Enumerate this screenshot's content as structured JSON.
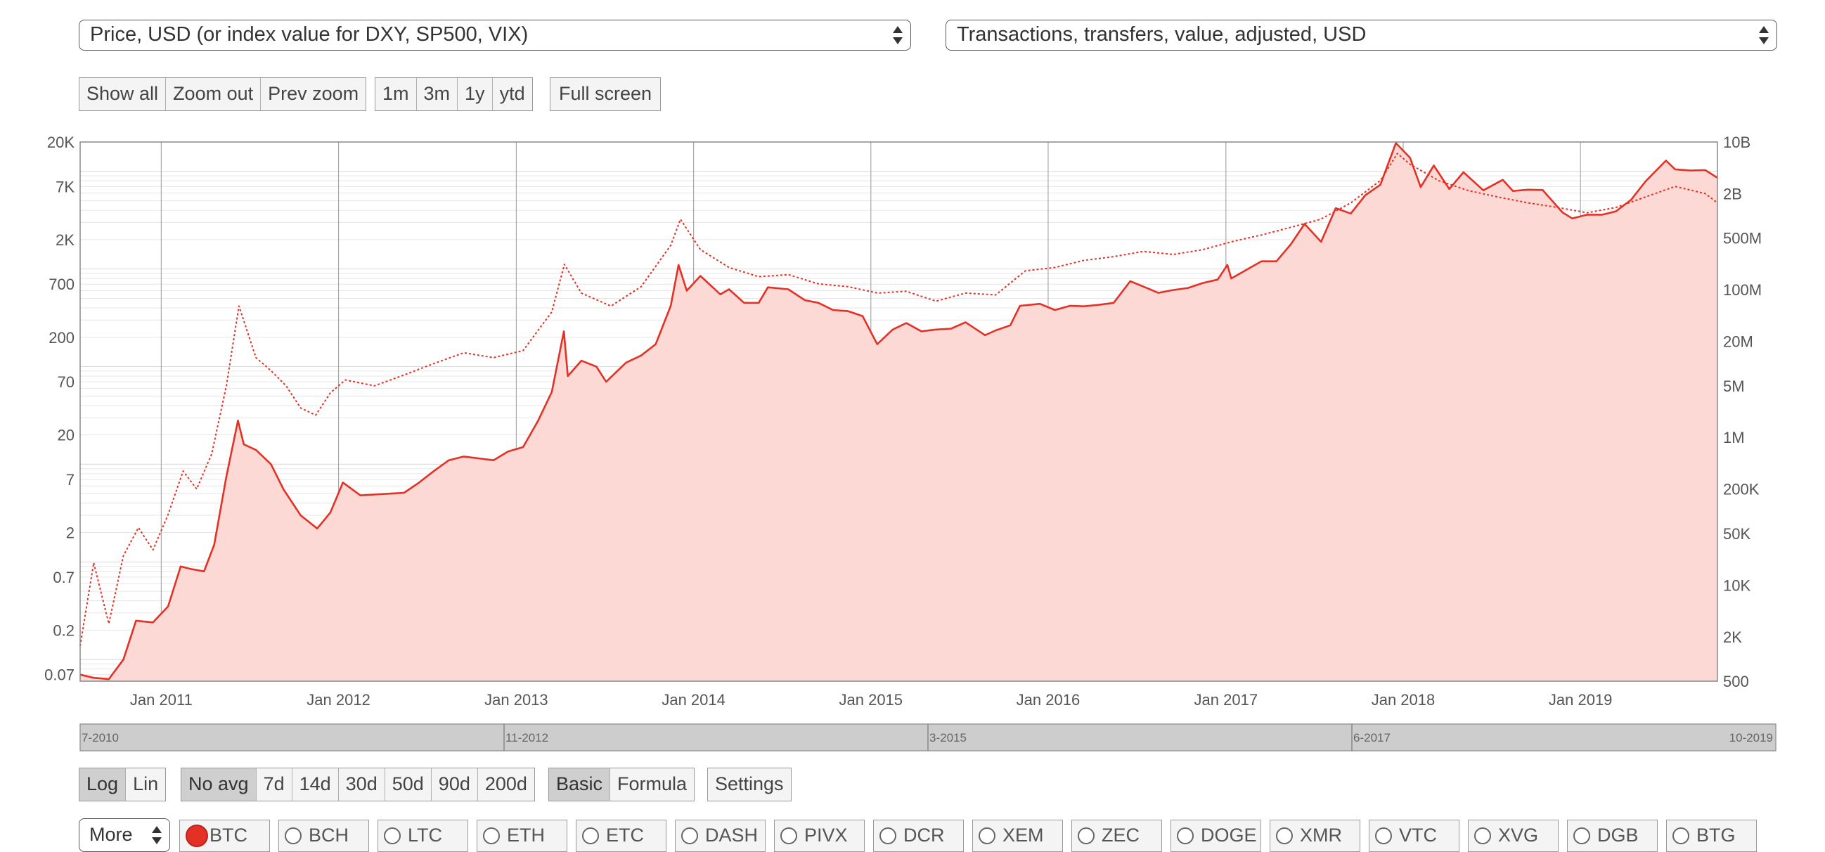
{
  "selectors": {
    "left_metric": "Price, USD (or index value for DXY, SP500, VIX)",
    "right_metric": "Transactions, transfers, value, adjusted, USD"
  },
  "zoom_buttons": [
    "Show all",
    "Zoom out",
    "Prev zoom"
  ],
  "range_buttons": [
    "1m",
    "3m",
    "1y",
    "ytd"
  ],
  "fullscreen_label": "Full screen",
  "scale_buttons": [
    "Log",
    "Lin"
  ],
  "scale_active": "Log",
  "avg_buttons": [
    "No avg",
    "7d",
    "14d",
    "30d",
    "50d",
    "90d",
    "200d"
  ],
  "avg_active": "No avg",
  "mode_buttons": [
    "Basic",
    "Formula"
  ],
  "mode_active": "Basic",
  "settings_label": "Settings",
  "more_label": "More",
  "coins": [
    "BTC",
    "BCH",
    "LTC",
    "ETH",
    "ETC",
    "DASH",
    "PIVX",
    "DCR",
    "XEM",
    "ZEC",
    "DOGE",
    "XMR",
    "VTC",
    "XVG",
    "DGB",
    "BTG"
  ],
  "active_coin": "BTC",
  "navigator_labels": [
    "7-2010",
    "11-2012",
    "3-2015",
    "6-2017",
    "10-2019"
  ],
  "colors": {
    "series": "#e33225",
    "fill": "#fdd9d6",
    "active_coin": "#e33225"
  },
  "chart_data": {
    "type": "area",
    "x_ticks": [
      "Jan 2011",
      "Jan 2012",
      "Jan 2013",
      "Jan 2014",
      "Jan 2015",
      "Jan 2016",
      "Jan 2017",
      "Jan 2018",
      "Jan 2019"
    ],
    "x_range": [
      "2010-07-18",
      "2019-10-10"
    ],
    "y_left_ticks": [
      "20K",
      "7K",
      "2K",
      "700",
      "200",
      "70",
      "20",
      "7",
      "2",
      "0.7",
      "0.2",
      "0.07"
    ],
    "y_left_range": [
      0.06,
      20000
    ],
    "y_left_scale": "log",
    "y_right_ticks": [
      "10B",
      "2B",
      "500M",
      "100M",
      "20M",
      "5M",
      "1M",
      "200K",
      "50K",
      "10K",
      "2K",
      "500"
    ],
    "y_right_range": [
      500,
      10000000000
    ],
    "y_right_scale": "log",
    "grid": true,
    "series": [
      {
        "style": "solid",
        "axis": "left",
        "points": [
          [
            "2010-07-18",
            0.07
          ],
          [
            "2010-08-15",
            0.065
          ],
          [
            "2010-09-15",
            0.063
          ],
          [
            "2010-10-15",
            0.1
          ],
          [
            "2010-11-10",
            0.25
          ],
          [
            "2010-12-15",
            0.24
          ],
          [
            "2011-01-15",
            0.35
          ],
          [
            "2011-02-10",
            0.9
          ],
          [
            "2011-03-01",
            0.85
          ],
          [
            "2011-03-30",
            0.8
          ],
          [
            "2011-04-20",
            1.5
          ],
          [
            "2011-05-15",
            7.5
          ],
          [
            "2011-06-08",
            28
          ],
          [
            "2011-06-20",
            16
          ],
          [
            "2011-07-15",
            14
          ],
          [
            "2011-08-15",
            10
          ],
          [
            "2011-09-10",
            5.5
          ],
          [
            "2011-10-15",
            3
          ],
          [
            "2011-11-18",
            2.2
          ],
          [
            "2011-12-15",
            3.2
          ],
          [
            "2012-01-10",
            6.5
          ],
          [
            "2012-02-15",
            4.8
          ],
          [
            "2012-03-15",
            4.9
          ],
          [
            "2012-04-15",
            5
          ],
          [
            "2012-05-15",
            5.1
          ],
          [
            "2012-06-15",
            6.5
          ],
          [
            "2012-07-15",
            8.5
          ],
          [
            "2012-08-15",
            11
          ],
          [
            "2012-09-15",
            12
          ],
          [
            "2012-10-15",
            11.5
          ],
          [
            "2012-11-15",
            11
          ],
          [
            "2012-12-15",
            13.5
          ],
          [
            "2013-01-15",
            15
          ],
          [
            "2013-02-15",
            28
          ],
          [
            "2013-03-15",
            55
          ],
          [
            "2013-04-09",
            230
          ],
          [
            "2013-04-17",
            80
          ],
          [
            "2013-05-15",
            115
          ],
          [
            "2013-06-15",
            100
          ],
          [
            "2013-07-05",
            70
          ],
          [
            "2013-08-15",
            110
          ],
          [
            "2013-09-15",
            130
          ],
          [
            "2013-10-15",
            170
          ],
          [
            "2013-11-15",
            420
          ],
          [
            "2013-12-01",
            1100
          ],
          [
            "2013-12-18",
            600
          ],
          [
            "2014-01-15",
            850
          ],
          [
            "2014-02-25",
            550
          ],
          [
            "2014-03-15",
            620
          ],
          [
            "2014-04-15",
            450
          ],
          [
            "2014-05-15",
            450
          ],
          [
            "2014-06-03",
            650
          ],
          [
            "2014-07-15",
            620
          ],
          [
            "2014-08-18",
            480
          ],
          [
            "2014-09-15",
            450
          ],
          [
            "2014-10-15",
            380
          ],
          [
            "2014-11-15",
            370
          ],
          [
            "2014-12-15",
            330
          ],
          [
            "2015-01-14",
            170
          ],
          [
            "2015-02-15",
            240
          ],
          [
            "2015-03-15",
            280
          ],
          [
            "2015-04-15",
            230
          ],
          [
            "2015-05-15",
            240
          ],
          [
            "2015-06-15",
            245
          ],
          [
            "2015-07-15",
            285
          ],
          [
            "2015-08-24",
            210
          ],
          [
            "2015-09-15",
            235
          ],
          [
            "2015-10-15",
            265
          ],
          [
            "2015-11-04",
            420
          ],
          [
            "2015-12-15",
            440
          ],
          [
            "2016-01-15",
            380
          ],
          [
            "2016-02-15",
            420
          ],
          [
            "2016-03-15",
            415
          ],
          [
            "2016-04-15",
            430
          ],
          [
            "2016-05-15",
            450
          ],
          [
            "2016-06-18",
            750
          ],
          [
            "2016-07-15",
            660
          ],
          [
            "2016-08-15",
            570
          ],
          [
            "2016-09-15",
            610
          ],
          [
            "2016-10-15",
            640
          ],
          [
            "2016-11-15",
            720
          ],
          [
            "2016-12-15",
            780
          ],
          [
            "2017-01-04",
            1100
          ],
          [
            "2017-01-12",
            800
          ],
          [
            "2017-02-15",
            1000
          ],
          [
            "2017-03-15",
            1200
          ],
          [
            "2017-04-15",
            1200
          ],
          [
            "2017-05-15",
            1800
          ],
          [
            "2017-06-12",
            2900
          ],
          [
            "2017-07-16",
            1900
          ],
          [
            "2017-08-15",
            4200
          ],
          [
            "2017-09-15",
            3700
          ],
          [
            "2017-10-15",
            5700
          ],
          [
            "2017-11-15",
            7300
          ],
          [
            "2017-12-17",
            19500
          ],
          [
            "2018-01-15",
            13800
          ],
          [
            "2018-02-06",
            6900
          ],
          [
            "2018-03-05",
            11500
          ],
          [
            "2018-04-06",
            6600
          ],
          [
            "2018-05-05",
            9800
          ],
          [
            "2018-06-15",
            6400
          ],
          [
            "2018-07-25",
            8200
          ],
          [
            "2018-08-15",
            6300
          ],
          [
            "2018-09-15",
            6500
          ],
          [
            "2018-10-15",
            6450
          ],
          [
            "2018-11-25",
            3800
          ],
          [
            "2018-12-15",
            3300
          ],
          [
            "2019-01-15",
            3600
          ],
          [
            "2019-02-15",
            3600
          ],
          [
            "2019-03-15",
            3900
          ],
          [
            "2019-04-15",
            5100
          ],
          [
            "2019-05-15",
            7900
          ],
          [
            "2019-06-26",
            12900
          ],
          [
            "2019-07-15",
            10500
          ],
          [
            "2019-08-15",
            10200
          ],
          [
            "2019-09-15",
            10300
          ],
          [
            "2019-10-10",
            8600
          ]
        ]
      },
      {
        "style": "dotted",
        "axis": "right",
        "points": [
          [
            "2010-07-18",
            1500
          ],
          [
            "2010-08-15",
            20000
          ],
          [
            "2010-09-15",
            3000
          ],
          [
            "2010-10-15",
            25000
          ],
          [
            "2010-11-15",
            60000
          ],
          [
            "2010-12-15",
            30000
          ],
          [
            "2011-01-15",
            90000
          ],
          [
            "2011-02-15",
            350000
          ],
          [
            "2011-03-15",
            200000
          ],
          [
            "2011-04-15",
            600000
          ],
          [
            "2011-05-15",
            5000000
          ],
          [
            "2011-06-10",
            60000000
          ],
          [
            "2011-07-15",
            12000000
          ],
          [
            "2011-08-15",
            8000000
          ],
          [
            "2011-09-15",
            5000000
          ],
          [
            "2011-10-15",
            2500000
          ],
          [
            "2011-11-15",
            2000000
          ],
          [
            "2011-12-15",
            4000000
          ],
          [
            "2012-01-15",
            6000000
          ],
          [
            "2012-03-15",
            5000000
          ],
          [
            "2012-05-15",
            7000000
          ],
          [
            "2012-07-15",
            10000000
          ],
          [
            "2012-09-15",
            14000000
          ],
          [
            "2012-11-15",
            12000000
          ],
          [
            "2013-01-15",
            15000000
          ],
          [
            "2013-03-15",
            50000000
          ],
          [
            "2013-04-10",
            220000000
          ],
          [
            "2013-05-15",
            90000000
          ],
          [
            "2013-07-15",
            60000000
          ],
          [
            "2013-09-15",
            110000000
          ],
          [
            "2013-11-15",
            400000000
          ],
          [
            "2013-12-05",
            900000000
          ],
          [
            "2014-01-15",
            350000000
          ],
          [
            "2014-03-15",
            200000000
          ],
          [
            "2014-05-15",
            150000000
          ],
          [
            "2014-07-15",
            160000000
          ],
          [
            "2014-09-15",
            120000000
          ],
          [
            "2014-11-15",
            110000000
          ],
          [
            "2015-01-15",
            90000000
          ],
          [
            "2015-03-15",
            95000000
          ],
          [
            "2015-05-15",
            70000000
          ],
          [
            "2015-07-15",
            90000000
          ],
          [
            "2015-09-15",
            85000000
          ],
          [
            "2015-11-15",
            180000000
          ],
          [
            "2016-01-15",
            200000000
          ],
          [
            "2016-03-15",
            250000000
          ],
          [
            "2016-05-15",
            280000000
          ],
          [
            "2016-07-15",
            330000000
          ],
          [
            "2016-09-15",
            300000000
          ],
          [
            "2016-11-15",
            350000000
          ],
          [
            "2017-01-15",
            450000000
          ],
          [
            "2017-03-15",
            550000000
          ],
          [
            "2017-05-15",
            700000000
          ],
          [
            "2017-07-15",
            900000000
          ],
          [
            "2017-09-15",
            1500000000
          ],
          [
            "2017-11-15",
            3000000000
          ],
          [
            "2017-12-20",
            7000000000
          ],
          [
            "2018-01-15",
            5000000000
          ],
          [
            "2018-03-15",
            3000000000
          ],
          [
            "2018-05-15",
            2200000000
          ],
          [
            "2018-07-15",
            1800000000
          ],
          [
            "2018-09-15",
            1500000000
          ],
          [
            "2018-11-15",
            1300000000
          ],
          [
            "2019-01-15",
            1100000000
          ],
          [
            "2019-03-15",
            1300000000
          ],
          [
            "2019-05-15",
            1800000000
          ],
          [
            "2019-07-15",
            2500000000
          ],
          [
            "2019-09-15",
            2000000000
          ],
          [
            "2019-10-10",
            1500000000
          ]
        ]
      }
    ]
  }
}
